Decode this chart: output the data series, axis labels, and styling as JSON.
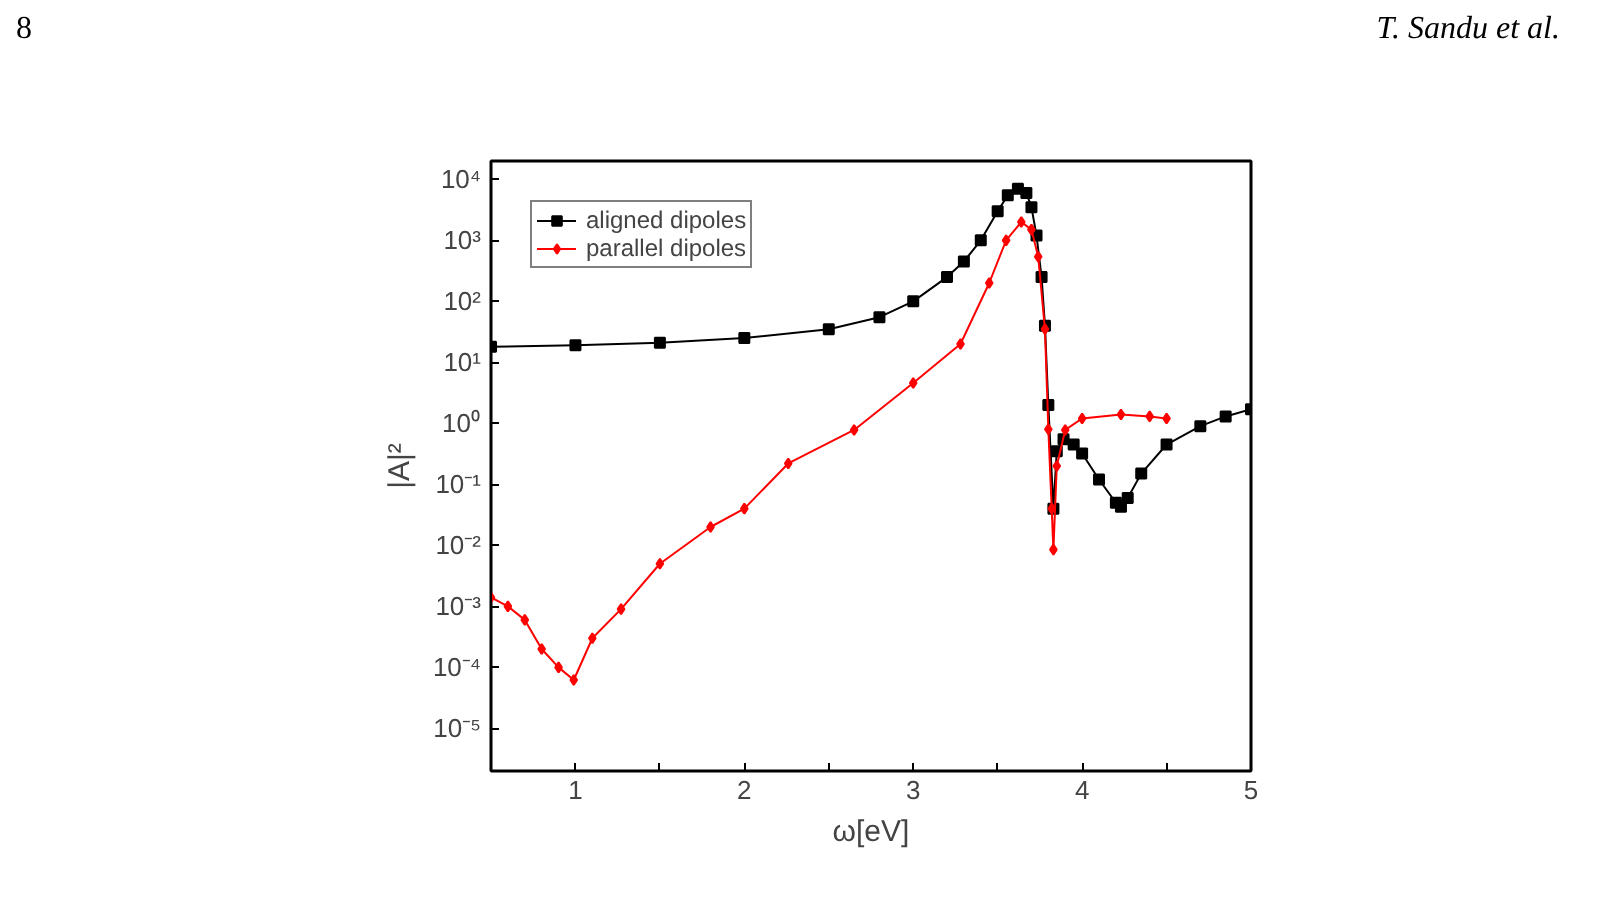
{
  "chart_data": {
    "type": "line",
    "xlabel": "ω[eV]",
    "ylabel": "|A|²",
    "log": "y",
    "xlim": [
      0.5,
      5
    ],
    "xticks": [
      {
        "value": 0.5,
        "label": null
      },
      1,
      {
        "value": 1.5,
        "label": null
      },
      2,
      {
        "value": 2.5,
        "label": null
      },
      3,
      {
        "value": 3.5,
        "label": null
      },
      4,
      {
        "value": 4.5,
        "label": null
      },
      5
    ],
    "ylim": [
      2e-06,
      20000.0
    ],
    "yticks": [
      {
        "value": 1e-05,
        "label": "10⁻⁵"
      },
      {
        "value": 0.0001,
        "label": "10⁻⁴"
      },
      {
        "value": 0.001,
        "label": "10⁻³"
      },
      {
        "value": 0.01,
        "label": "10⁻²"
      },
      {
        "value": 0.1,
        "label": "10⁻¹"
      },
      {
        "value": 1,
        "label": "10⁰"
      },
      {
        "value": 10,
        "label": "10¹"
      },
      {
        "value": 100,
        "label": "10²"
      },
      {
        "value": 1000,
        "label": "10³"
      },
      {
        "value": 10000,
        "label": "10⁴"
      }
    ],
    "grid": false,
    "legend": "top left",
    "line_style": "solid",
    "annotations": [
      "8",
      "T. Sandu et al."
    ],
    "series": [
      {
        "name": "aligned dipoles",
        "color": "#000000",
        "marker": "square",
        "x": [
          0.5,
          1.0,
          1.5,
          2.0,
          2.5,
          2.8,
          3.0,
          3.2,
          3.3,
          3.4,
          3.5,
          3.56,
          3.62,
          3.67,
          3.7,
          3.73,
          3.76,
          3.78,
          3.8,
          3.83,
          3.85,
          3.89,
          3.95,
          4.0,
          4.1,
          4.2,
          4.23,
          4.27,
          4.35,
          4.5,
          4.7,
          4.85,
          5.0
        ],
        "values": [
          18,
          19,
          21,
          25,
          35,
          55,
          100,
          250,
          450,
          1000,
          3000,
          5500,
          7000,
          6000,
          3500,
          1200,
          250,
          40,
          2,
          0.04,
          0.35,
          0.55,
          0.45,
          0.32,
          0.12,
          0.05,
          0.043,
          0.06,
          0.15,
          0.45,
          0.9,
          1.3,
          1.7
        ]
      },
      {
        "name": "parallel dipoles",
        "color": "#ff0000",
        "marker": "diamond",
        "x": [
          0.5,
          0.6,
          0.7,
          0.8,
          0.9,
          0.99,
          1.1,
          1.27,
          1.5,
          1.8,
          2.0,
          2.26,
          2.65,
          3.0,
          3.28,
          3.45,
          3.55,
          3.64,
          3.7,
          3.74,
          3.78,
          3.8,
          3.82,
          3.83,
          3.85,
          3.9,
          4.0,
          4.23,
          4.4,
          4.5
        ],
        "values": [
          0.0014,
          0.001,
          0.0006,
          0.0002,
          0.0001,
          6.2e-05,
          0.0003,
          0.0009,
          0.005,
          0.02,
          0.04,
          0.22,
          0.78,
          4.6,
          20,
          200,
          1000,
          2000,
          1500,
          540,
          35,
          0.8,
          0.04,
          0.0085,
          0.2,
          0.78,
          1.2,
          1.4,
          1.3,
          1.2
        ]
      }
    ]
  }
}
